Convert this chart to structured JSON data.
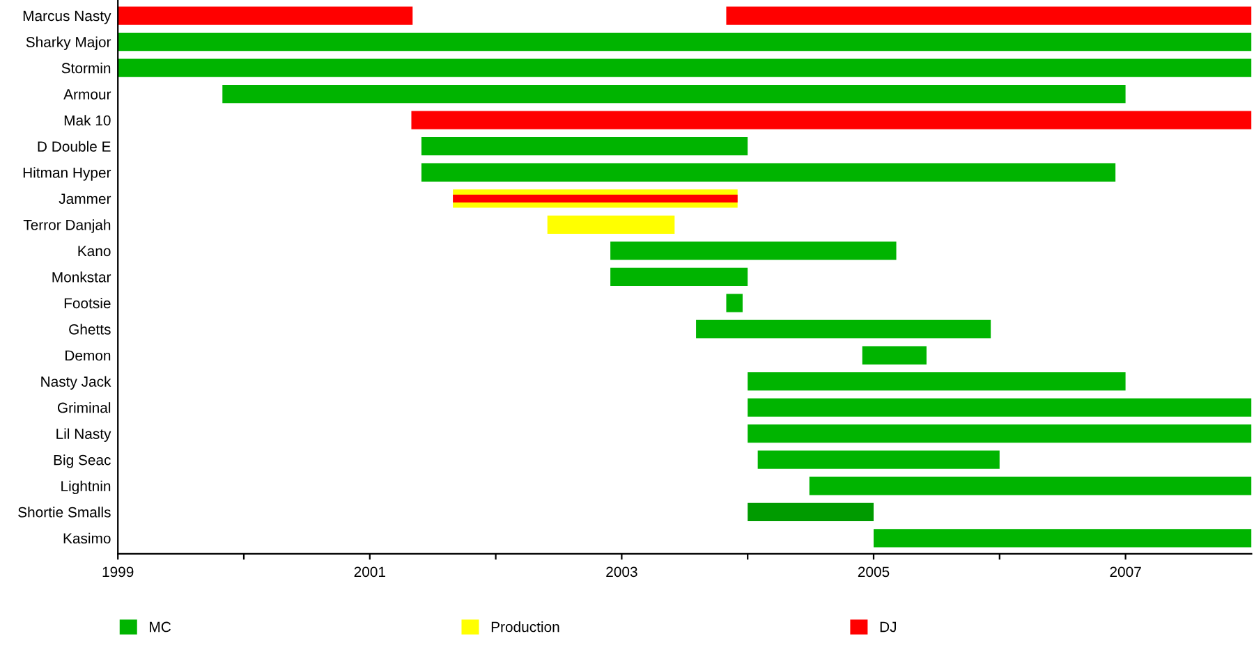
{
  "chart_data": {
    "type": "bar",
    "orientation": "horizontal",
    "categories": [
      "Marcus Nasty",
      "Sharky Major",
      "Stormin",
      "Armour",
      "Mak 10",
      "D Double E",
      "Hitman Hyper",
      "Jammer",
      "Terror Danjah",
      "Kano",
      "Monkstar",
      "Footsie",
      "Ghetts",
      "Demon",
      "Nasty Jack",
      "Griminal",
      "Lil Nasty",
      "Big Seac",
      "Lightnin",
      "Shortie Smalls",
      "Kasimo"
    ],
    "series": [
      {
        "name": "MC",
        "color": "#00b400",
        "colors": [
          null,
          "#00b400",
          "#00b400",
          "#00b400",
          null,
          "#00b400",
          "#00b400",
          null,
          null,
          "#00b400",
          "#00b400",
          "#00b400",
          "#00b400",
          "#00b400",
          "#00b400",
          "#00b400",
          "#00b400",
          "#00b400",
          "#00b400",
          "#009b00",
          "#00b400"
        ],
        "base": [
          null,
          1999,
          1999,
          1999.83,
          null,
          2001.41,
          2001.41,
          null,
          null,
          2002.91,
          2002.91,
          2003.83,
          2003.59,
          2004.91,
          2004.0,
          2004.0,
          2004.0,
          2004.08,
          2004.49,
          2004.0,
          2005.0
        ],
        "values": [
          null,
          9,
          9,
          7.17,
          null,
          2.59,
          5.51,
          null,
          null,
          2.27,
          1.09,
          0.13,
          2.34,
          0.51,
          3.0,
          4,
          4,
          1.92,
          3.51,
          1.0,
          3.0
        ]
      },
      {
        "name": "Production",
        "color": "#ffff00",
        "base": [
          null,
          null,
          null,
          null,
          null,
          null,
          null,
          2001.66,
          2002.41,
          null,
          null,
          null,
          null,
          null,
          null,
          null,
          null,
          null,
          null,
          null,
          null
        ],
        "values": [
          null,
          null,
          null,
          null,
          null,
          null,
          null,
          2.26,
          1.01,
          null,
          null,
          null,
          null,
          null,
          null,
          null,
          null,
          null,
          null,
          null,
          null
        ]
      },
      {
        "name": "DJ",
        "color": "#ff0000",
        "base": [
          1999,
          null,
          null,
          null,
          2001.33,
          null,
          null,
          2001.66,
          null,
          null,
          null,
          null,
          null,
          null,
          null,
          null,
          null,
          null,
          null,
          null,
          null
        ],
        "values": [
          2.34,
          null,
          null,
          null,
          6.67,
          null,
          null,
          2.26,
          null,
          null,
          null,
          null,
          null,
          null,
          null,
          null,
          null,
          null,
          null,
          null,
          null
        ]
      },
      {
        "color": "#ff0000",
        "base": [
          2003.83,
          null,
          null,
          null,
          null,
          null,
          null,
          null,
          null,
          null,
          null,
          null,
          null,
          null,
          null,
          null,
          null,
          null,
          null,
          null,
          null
        ],
        "values": [
          4.17,
          null,
          null,
          null,
          null,
          null,
          null,
          null,
          null,
          null,
          null,
          null,
          null,
          null,
          null,
          null,
          null,
          null,
          null,
          null,
          null
        ]
      }
    ],
    "xlim": [
      1999,
      2008
    ],
    "xticks": [
      1999,
      {
        "value": 2000,
        "label": null
      },
      2001,
      {
        "value": 2002,
        "label": null
      },
      2003,
      {
        "value": 2004,
        "label": null
      },
      2005,
      {
        "value": 2006,
        "label": null
      },
      2007
    ],
    "grid": false,
    "legend": "bottom"
  }
}
